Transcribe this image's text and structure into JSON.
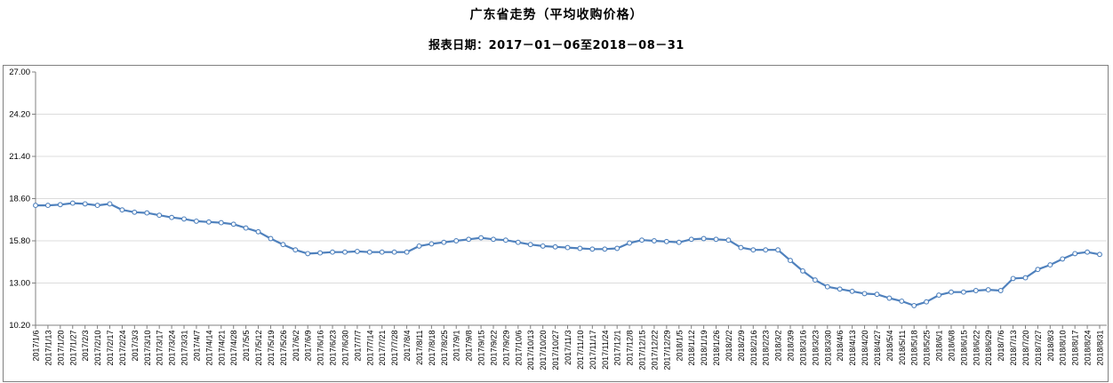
{
  "header": {
    "title": "广东省走势（平均收购价格）",
    "subtitle": "报表日期：2017－01－06至2018－08－31"
  },
  "chart_data": {
    "type": "line",
    "title": "广东省走势（平均收购价格）",
    "subtitle": "报表日期：2017－01－06至2018－08－31",
    "xlabel": "",
    "ylabel": "",
    "ylim": [
      10.2,
      27.0
    ],
    "y_tick_labels": [
      "27.00",
      "24.20",
      "21.40",
      "18.60",
      "15.80",
      "13.00",
      "10.20"
    ],
    "grid": true,
    "legend": "none",
    "line_color": "#4F81BD",
    "marker": "open-circle",
    "marker_fill": "#ffffff",
    "grid_color": "#DCDCDC",
    "axis_color": "#808080",
    "label_color": "#000000",
    "x": [
      "2017/1/6",
      "2017/1/13",
      "2017/1/20",
      "2017/1/27",
      "2017/2/3",
      "2017/2/10",
      "2017/2/17",
      "2017/2/24",
      "2017/3/3",
      "2017/3/10",
      "2017/3/17",
      "2017/3/24",
      "2017/3/31",
      "2017/4/7",
      "2017/4/14",
      "2017/4/21",
      "2017/4/28",
      "2017/5/5",
      "2017/5/12",
      "2017/5/19",
      "2017/5/26",
      "2017/6/2",
      "2017/6/9",
      "2017/6/16",
      "2017/6/23",
      "2017/6/30",
      "2017/7/7",
      "2017/7/14",
      "2017/7/21",
      "2017/7/28",
      "2017/8/4",
      "2017/8/11",
      "2017/8/18",
      "2017/8/25",
      "2017/9/1",
      "2017/9/8",
      "2017/9/15",
      "2017/9/22",
      "2017/9/29",
      "2017/10/6",
      "2017/10/13",
      "2017/10/20",
      "2017/10/27",
      "2017/11/3",
      "2017/11/10",
      "2017/11/17",
      "2017/11/24",
      "2017/12/1",
      "2017/12/8",
      "2017/12/15",
      "2017/12/22",
      "2017/12/29",
      "2018/1/5",
      "2018/1/12",
      "2018/1/19",
      "2018/1/26",
      "2018/2/2",
      "2018/2/9",
      "2018/2/16",
      "2018/2/23",
      "2018/3/2",
      "2018/3/9",
      "2018/3/16",
      "2018/3/23",
      "2018/3/30",
      "2018/4/6",
      "2018/4/13",
      "2018/4/20",
      "2018/4/27",
      "2018/5/4",
      "2018/5/11",
      "2018/5/18",
      "2018/5/25",
      "2018/6/1",
      "2018/6/8",
      "2018/6/15",
      "2018/6/22",
      "2018/6/29",
      "2018/7/6",
      "2018/7/13",
      "2018/7/20",
      "2018/7/27",
      "2018/8/3",
      "2018/8/10",
      "2018/8/17",
      "2018/8/24",
      "2018/8/31"
    ],
    "values": [
      18.15,
      18.15,
      18.2,
      18.3,
      18.25,
      18.15,
      18.25,
      17.85,
      17.7,
      17.65,
      17.5,
      17.35,
      17.25,
      17.1,
      17.05,
      17.0,
      16.9,
      16.65,
      16.4,
      15.95,
      15.55,
      15.2,
      14.95,
      15.0,
      15.05,
      15.05,
      15.1,
      15.05,
      15.05,
      15.05,
      15.05,
      15.45,
      15.6,
      15.7,
      15.8,
      15.9,
      16.0,
      15.9,
      15.85,
      15.7,
      15.55,
      15.45,
      15.4,
      15.35,
      15.3,
      15.25,
      15.25,
      15.3,
      15.65,
      15.85,
      15.8,
      15.75,
      15.7,
      15.9,
      15.95,
      15.9,
      15.85,
      15.35,
      15.2,
      15.2,
      15.2,
      14.5,
      13.8,
      13.2,
      12.75,
      12.6,
      12.45,
      12.3,
      12.25,
      12.0,
      11.8,
      11.5,
      11.75,
      12.2,
      12.4,
      12.4,
      12.5,
      12.55,
      12.5,
      13.3,
      13.35,
      13.9,
      14.2,
      14.6,
      14.95,
      15.05,
      14.9
    ]
  }
}
